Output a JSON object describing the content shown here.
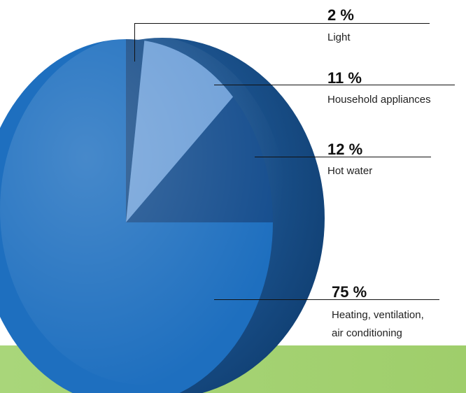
{
  "chart_data": {
    "type": "pie",
    "title": "",
    "values": [
      2,
      11,
      12,
      75
    ],
    "unit": "%",
    "slices": [
      {
        "percent_label": "2 %",
        "name": "Light",
        "value": 2,
        "color": "#1a4f8a"
      },
      {
        "percent_label": "11 %",
        "name": "Household appliances",
        "value": 11,
        "color": "#6fa0d8"
      },
      {
        "percent_label": "12 %",
        "name": "Hot water",
        "value": 12,
        "color": "#164e8e"
      },
      {
        "percent_label": "75 %",
        "name": "Heating, ventilation, air conditioning",
        "name_lines": [
          "Heating, ventilation,",
          "air conditioning"
        ],
        "value": 75,
        "color": "#1e6fbf"
      }
    ],
    "legend": "callouts-right"
  },
  "colors": {
    "band": "#a9d67a",
    "pie_rim": "#0f3d70"
  }
}
